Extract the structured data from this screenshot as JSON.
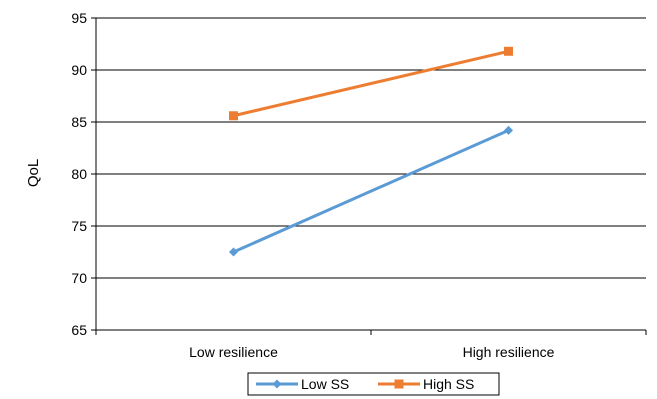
{
  "chart_data": {
    "type": "line",
    "title": "",
    "xlabel": "",
    "ylabel": "QoL",
    "categories": [
      "Low resilience",
      "High resilience"
    ],
    "ylim": [
      65,
      95
    ],
    "yticks": [
      65,
      70,
      75,
      80,
      85,
      90,
      95
    ],
    "grid": "horizontal",
    "legend_position": "bottom",
    "series": [
      {
        "name": "Low SS",
        "values": [
          72.5,
          84.2
        ],
        "color": "#5B9BD5",
        "marker": "diamond"
      },
      {
        "name": "High SS",
        "values": [
          85.6,
          91.8
        ],
        "color": "#ED7D31",
        "marker": "square"
      }
    ]
  }
}
